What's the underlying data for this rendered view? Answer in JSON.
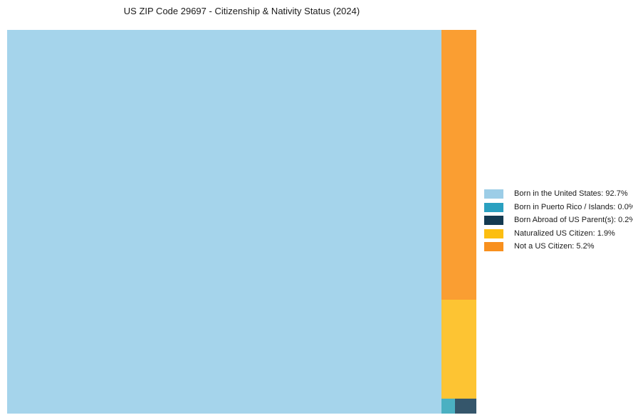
{
  "title": "US ZIP Code 29697 - Citizenship & Nativity Status (2024)",
  "chart_data": {
    "type": "treemap",
    "title": "US ZIP Code 29697 - Citizenship & Nativity Status (2024)",
    "unit": "%",
    "total": 100.0,
    "categories": [
      "Born in the United States",
      "Born in Puerto Rico / Islands",
      "Born Abroad of US Parent(s)",
      "Naturalized US Citizen",
      "Not a US Citizen"
    ],
    "values": [
      92.7,
      0.0,
      0.2,
      1.9,
      5.2
    ],
    "colors": [
      "#A5D4EB",
      "#4BB0C2",
      "#35566B",
      "#FDC433",
      "#FA9E32"
    ],
    "legend_position": "right",
    "axes": "none",
    "grid": false
  },
  "segments": {
    "born_us": {
      "label": "Born in the United States",
      "value_pct": 92.7,
      "color": "#A5D4EB"
    },
    "puerto_rico": {
      "label": "Born in Puerto Rico / Islands",
      "value_pct": 0.0,
      "color": "#4BB0C2"
    },
    "born_abroad": {
      "label": "Born Abroad of US Parent(s)",
      "value_pct": 0.2,
      "color": "#35566B"
    },
    "naturalized": {
      "label": "Naturalized US Citizen",
      "value_pct": 1.9,
      "color": "#FDC433"
    },
    "not_citizen": {
      "label": "Not a US Citizen",
      "value_pct": 5.2,
      "color": "#FA9E32"
    }
  },
  "legend": {
    "items": [
      {
        "label": "Born in the United States: 92.7%",
        "color": "#9CCDE7"
      },
      {
        "label": "Born in Puerto Rico / Islands: 0.0%",
        "color": "#2AA0C0"
      },
      {
        "label": "Born Abroad of US Parent(s): 0.2%",
        "color": "#143A51"
      },
      {
        "label": "Naturalized US Citizen: 1.9%",
        "color": "#FCBE11"
      },
      {
        "label": "Not a US Citizen: 5.2%",
        "color": "#F8901E"
      }
    ]
  }
}
